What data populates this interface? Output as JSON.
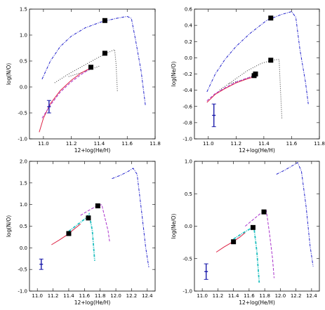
{
  "chart_data": [
    {
      "id": "top-left",
      "type": "line",
      "xlabel": "12+log(He/H)",
      "ylabel": "log(N/O)",
      "xlim": [
        10.9,
        11.8
      ],
      "ylim": [
        -1.0,
        1.5
      ],
      "xticks": [
        "11.0",
        "11.2",
        "11.4",
        "11.6",
        "11.8"
      ],
      "yticks": [
        "-1.0",
        "-0.5",
        "0.0",
        "0.5",
        "1.0",
        "1.5"
      ],
      "series": [
        {
          "style": "dashdot",
          "color": "#2222cc",
          "points": [
            [
              10.99,
              0.15
            ],
            [
              11.05,
              0.5
            ],
            [
              11.12,
              0.78
            ],
            [
              11.2,
              0.98
            ],
            [
              11.3,
              1.14
            ],
            [
              11.42,
              1.26
            ],
            [
              11.52,
              1.32
            ],
            [
              11.6,
              1.36
            ],
            [
              11.63,
              1.32
            ],
            [
              11.66,
              0.9
            ],
            [
              11.7,
              0.3
            ],
            [
              11.73,
              -0.35
            ]
          ]
        },
        {
          "style": "dotted",
          "color": "#333333",
          "points": [
            [
              11.08,
              0.08
            ],
            [
              11.18,
              0.25
            ],
            [
              11.28,
              0.4
            ],
            [
              11.38,
              0.55
            ],
            [
              11.46,
              0.66
            ],
            [
              11.51,
              0.72
            ],
            [
              11.52,
              0.45
            ],
            [
              11.53,
              -0.1
            ]
          ]
        },
        {
          "style": "dotted",
          "color": "#333333",
          "points": [
            [
              11.18,
              0.2
            ],
            [
              11.3,
              0.3
            ],
            [
              11.4,
              0.4
            ]
          ]
        },
        {
          "style": "solid",
          "color": "#dd2244",
          "points": [
            [
              10.97,
              -0.87
            ],
            [
              11.0,
              -0.6
            ],
            [
              11.05,
              -0.32
            ],
            [
              11.12,
              -0.07
            ],
            [
              11.2,
              0.13
            ],
            [
              11.27,
              0.27
            ],
            [
              11.34,
              0.37
            ]
          ]
        },
        {
          "style": "dashed",
          "color": "#aa33cc",
          "points": [
            [
              10.99,
              -0.6
            ],
            [
              11.05,
              -0.35
            ],
            [
              11.12,
              -0.1
            ],
            [
              11.2,
              0.1
            ],
            [
              11.28,
              0.26
            ],
            [
              11.35,
              0.37
            ]
          ]
        }
      ],
      "markers": [
        [
          11.34,
          0.38
        ],
        [
          11.44,
          0.65
        ],
        [
          11.44,
          1.28
        ]
      ],
      "errorbar": {
        "x": 11.04,
        "y": -0.38,
        "yerr": 0.12
      }
    },
    {
      "id": "top-right",
      "type": "line",
      "xlabel": "12+log(He/H)",
      "ylabel": "log(Ne/O)",
      "xlim": [
        10.9,
        11.8
      ],
      "ylim": [
        -1.0,
        0.6
      ],
      "xticks": [
        "11.0",
        "11.2",
        "11.4",
        "11.6",
        "11.8"
      ],
      "yticks": [
        "-1.0",
        "-0.8",
        "-0.6",
        "-0.4",
        "-0.2",
        "0.0",
        "0.2",
        "0.4",
        "0.6"
      ],
      "series": [
        {
          "style": "dashdot",
          "color": "#2222cc",
          "points": [
            [
              10.99,
              -0.42
            ],
            [
              11.05,
              -0.2
            ],
            [
              11.12,
              -0.02
            ],
            [
              11.2,
              0.14
            ],
            [
              11.3,
              0.3
            ],
            [
              11.42,
              0.46
            ],
            [
              11.52,
              0.53
            ],
            [
              11.6,
              0.57
            ],
            [
              11.63,
              0.5
            ],
            [
              11.66,
              0.1
            ],
            [
              11.7,
              -0.3
            ],
            [
              11.72,
              -0.57
            ]
          ]
        },
        {
          "style": "dotted",
          "color": "#333333",
          "points": [
            [
              11.08,
              -0.4
            ],
            [
              11.18,
              -0.28
            ],
            [
              11.28,
              -0.16
            ],
            [
              11.38,
              -0.07
            ],
            [
              11.46,
              -0.03
            ],
            [
              11.51,
              -0.02
            ],
            [
              11.52,
              -0.4
            ],
            [
              11.53,
              -0.75
            ]
          ]
        },
        {
          "style": "dotted",
          "color": "#333333",
          "points": [
            [
              11.15,
              -0.32
            ],
            [
              11.25,
              -0.27
            ],
            [
              11.34,
              -0.21
            ]
          ]
        },
        {
          "style": "solid",
          "color": "#dd2244",
          "points": [
            [
              10.99,
              -0.55
            ],
            [
              11.05,
              -0.45
            ],
            [
              11.12,
              -0.38
            ],
            [
              11.2,
              -0.31
            ],
            [
              11.28,
              -0.26
            ],
            [
              11.34,
              -0.23
            ]
          ]
        },
        {
          "style": "dashed",
          "color": "#aa33cc",
          "points": [
            [
              10.99,
              -0.53
            ],
            [
              11.05,
              -0.44
            ],
            [
              11.12,
              -0.37
            ],
            [
              11.2,
              -0.3
            ],
            [
              11.28,
              -0.25
            ],
            [
              11.34,
              -0.22
            ]
          ]
        }
      ],
      "markers": [
        [
          11.33,
          -0.22
        ],
        [
          11.34,
          -0.2
        ],
        [
          11.45,
          -0.03
        ],
        [
          11.45,
          0.49
        ]
      ],
      "errorbar": {
        "x": 11.04,
        "y": -0.71,
        "yerr": 0.14
      }
    },
    {
      "id": "bottom-left",
      "type": "line",
      "xlabel": "12+log(He/H)",
      "ylabel": "log(N/O)",
      "xlim": [
        10.9,
        12.5
      ],
      "ylim": [
        -1.0,
        2.0
      ],
      "xticks": [
        "11.0",
        "11.2",
        "11.4",
        "11.6",
        "11.8",
        "12.0",
        "12.2",
        "12.4"
      ],
      "yticks": [
        "-1.0",
        "-0.5",
        "0.0",
        "0.5",
        "1.0",
        "1.5",
        "2.0"
      ],
      "series": [
        {
          "style": "dashdot",
          "color": "#2222cc",
          "points": [
            [
              11.95,
              1.6
            ],
            [
              12.05,
              1.67
            ],
            [
              12.15,
              1.76
            ],
            [
              12.22,
              1.84
            ],
            [
              12.27,
              1.7
            ],
            [
              12.33,
              0.8
            ],
            [
              12.38,
              0.0
            ],
            [
              12.42,
              -0.45
            ]
          ]
        },
        {
          "style": "solid",
          "color": "#dd2244",
          "points": [
            [
              11.18,
              0.07
            ],
            [
              11.28,
              0.18
            ],
            [
              11.38,
              0.3
            ],
            [
              11.48,
              0.45
            ],
            [
              11.55,
              0.55
            ]
          ]
        },
        {
          "style": "dashdot",
          "color": "#1fbfbf",
          "points": [
            [
              11.4,
              0.38
            ],
            [
              11.5,
              0.52
            ],
            [
              11.6,
              0.66
            ],
            [
              11.66,
              0.78
            ],
            [
              11.7,
              0.4
            ],
            [
              11.73,
              -0.3
            ]
          ]
        },
        {
          "style": "dashed",
          "color": "#aa33cc",
          "points": [
            [
              11.55,
              0.75
            ],
            [
              11.65,
              0.86
            ],
            [
              11.75,
              0.96
            ],
            [
              11.82,
              1.0
            ],
            [
              11.86,
              0.7
            ],
            [
              11.9,
              0.4
            ],
            [
              11.92,
              0.15
            ]
          ]
        }
      ],
      "markers": [
        [
          11.4,
          0.33
        ],
        [
          11.65,
          0.69
        ],
        [
          11.77,
          0.97
        ]
      ],
      "errorbar": {
        "x": 11.05,
        "y": -0.38,
        "yerr": 0.12
      }
    },
    {
      "id": "bottom-right",
      "type": "line",
      "xlabel": "12+log(He/H)",
      "ylabel": "log(Ne/O)",
      "xlim": [
        10.9,
        12.5
      ],
      "ylim": [
        -1.0,
        1.0
      ],
      "xticks": [
        "11.0",
        "11.2",
        "11.4",
        "11.6",
        "11.8",
        "12.0",
        "12.2",
        "12.4"
      ],
      "yticks": [
        "-1.0",
        "-0.5",
        "0.0",
        "0.5",
        "1.0"
      ],
      "series": [
        {
          "style": "dashdot",
          "color": "#2222cc",
          "points": [
            [
              11.95,
              0.8
            ],
            [
              12.05,
              0.86
            ],
            [
              12.15,
              0.93
            ],
            [
              12.22,
              0.98
            ],
            [
              12.27,
              0.85
            ],
            [
              12.33,
              0.3
            ],
            [
              12.38,
              -0.3
            ],
            [
              12.42,
              -0.62
            ]
          ]
        },
        {
          "style": "solid",
          "color": "#dd2244",
          "points": [
            [
              11.18,
              -0.4
            ],
            [
              11.28,
              -0.32
            ],
            [
              11.38,
              -0.25
            ],
            [
              11.48,
              -0.17
            ],
            [
              11.55,
              -0.1
            ]
          ]
        },
        {
          "style": "dashdot",
          "color": "#1fbfbf",
          "points": [
            [
              11.4,
              -0.2
            ],
            [
              11.5,
              -0.12
            ],
            [
              11.6,
              -0.05
            ],
            [
              11.66,
              0.0
            ],
            [
              11.7,
              -0.4
            ],
            [
              11.73,
              -0.87
            ]
          ]
        },
        {
          "style": "dashed",
          "color": "#aa33cc",
          "points": [
            [
              11.55,
              0.0
            ],
            [
              11.65,
              0.1
            ],
            [
              11.75,
              0.2
            ],
            [
              11.82,
              0.24
            ],
            [
              11.86,
              -0.1
            ],
            [
              11.9,
              -0.5
            ],
            [
              11.92,
              -0.8
            ]
          ]
        }
      ],
      "markers": [
        [
          11.4,
          -0.24
        ],
        [
          11.65,
          -0.02
        ],
        [
          11.79,
          0.22
        ]
      ],
      "errorbar": {
        "x": 11.05,
        "y": -0.7,
        "yerr": 0.12
      }
    }
  ]
}
